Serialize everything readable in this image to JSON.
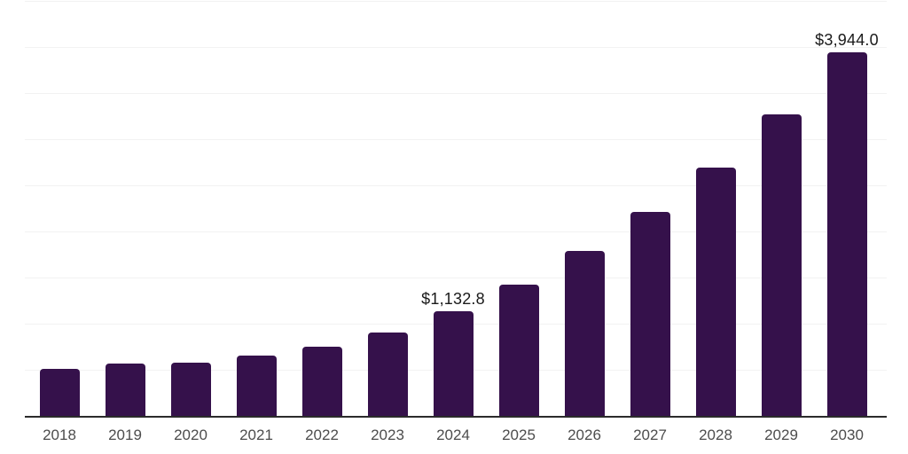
{
  "chart_data": {
    "type": "bar",
    "title": "",
    "xlabel": "",
    "ylabel": "",
    "categories": [
      "2018",
      "2019",
      "2020",
      "2021",
      "2022",
      "2023",
      "2024",
      "2025",
      "2026",
      "2027",
      "2028",
      "2029",
      "2030"
    ],
    "values": [
      505,
      565,
      580,
      655,
      750,
      900,
      1132.8,
      1420,
      1790,
      2210,
      2695,
      3270,
      3944
    ],
    "annotations": [
      {
        "category": "2024",
        "text": "$1,132.8"
      },
      {
        "category": "2030",
        "text": "$3,944.0"
      }
    ],
    "ylim": [
      0,
      4500
    ],
    "gridline_step": 500,
    "grid": "on",
    "y_tick_labels_visible": false,
    "legend": "none"
  },
  "colors": {
    "bar": "#35114B",
    "axis_line": "#2B2B2B",
    "gridline": "#F2F2F2",
    "tick_label": "#4D4D4D",
    "value_label": "#1A1A1A",
    "background": "#FFFFFF"
  }
}
